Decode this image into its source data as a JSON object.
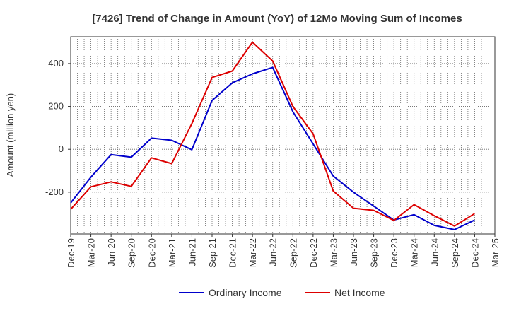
{
  "chart_data": {
    "type": "line",
    "title": "[7426]  Trend of Change in Amount (YoY) of 12Mo Moving Sum of Incomes",
    "xlabel": "",
    "ylabel": "Amount (million yen)",
    "categories": [
      "Dec-19",
      "Mar-20",
      "Jun-20",
      "Sep-20",
      "Dec-20",
      "Mar-21",
      "Jun-21",
      "Sep-21",
      "Dec-21",
      "Mar-22",
      "Jun-22",
      "Sep-22",
      "Dec-22",
      "Mar-23",
      "Jun-23",
      "Sep-23",
      "Dec-23",
      "Mar-24",
      "Jun-24",
      "Sep-24",
      "Dec-24",
      "Mar-25"
    ],
    "ylim": [
      -395,
      525
    ],
    "yticks": [
      -200,
      0,
      200,
      400
    ],
    "ytick_labels": [
      "-200",
      "0",
      "200",
      "400"
    ],
    "grid": true,
    "legend_position": "bottom",
    "series": [
      {
        "name": "Ordinary Income",
        "color": "#0000cc",
        "values": [
          -250,
          -130,
          -25,
          -37,
          52,
          42,
          -2,
          228,
          310,
          352,
          382,
          175,
          25,
          -125,
          -200,
          -265,
          -330,
          -305,
          -355,
          -375,
          -330,
          null
        ]
      },
      {
        "name": "Net Income",
        "color": "#dd0000",
        "values": [
          -280,
          -175,
          -152,
          -173,
          -40,
          -67,
          120,
          335,
          365,
          500,
          412,
          200,
          72,
          -195,
          -275,
          -285,
          -332,
          -258,
          -310,
          -358,
          -300,
          null
        ]
      }
    ]
  }
}
